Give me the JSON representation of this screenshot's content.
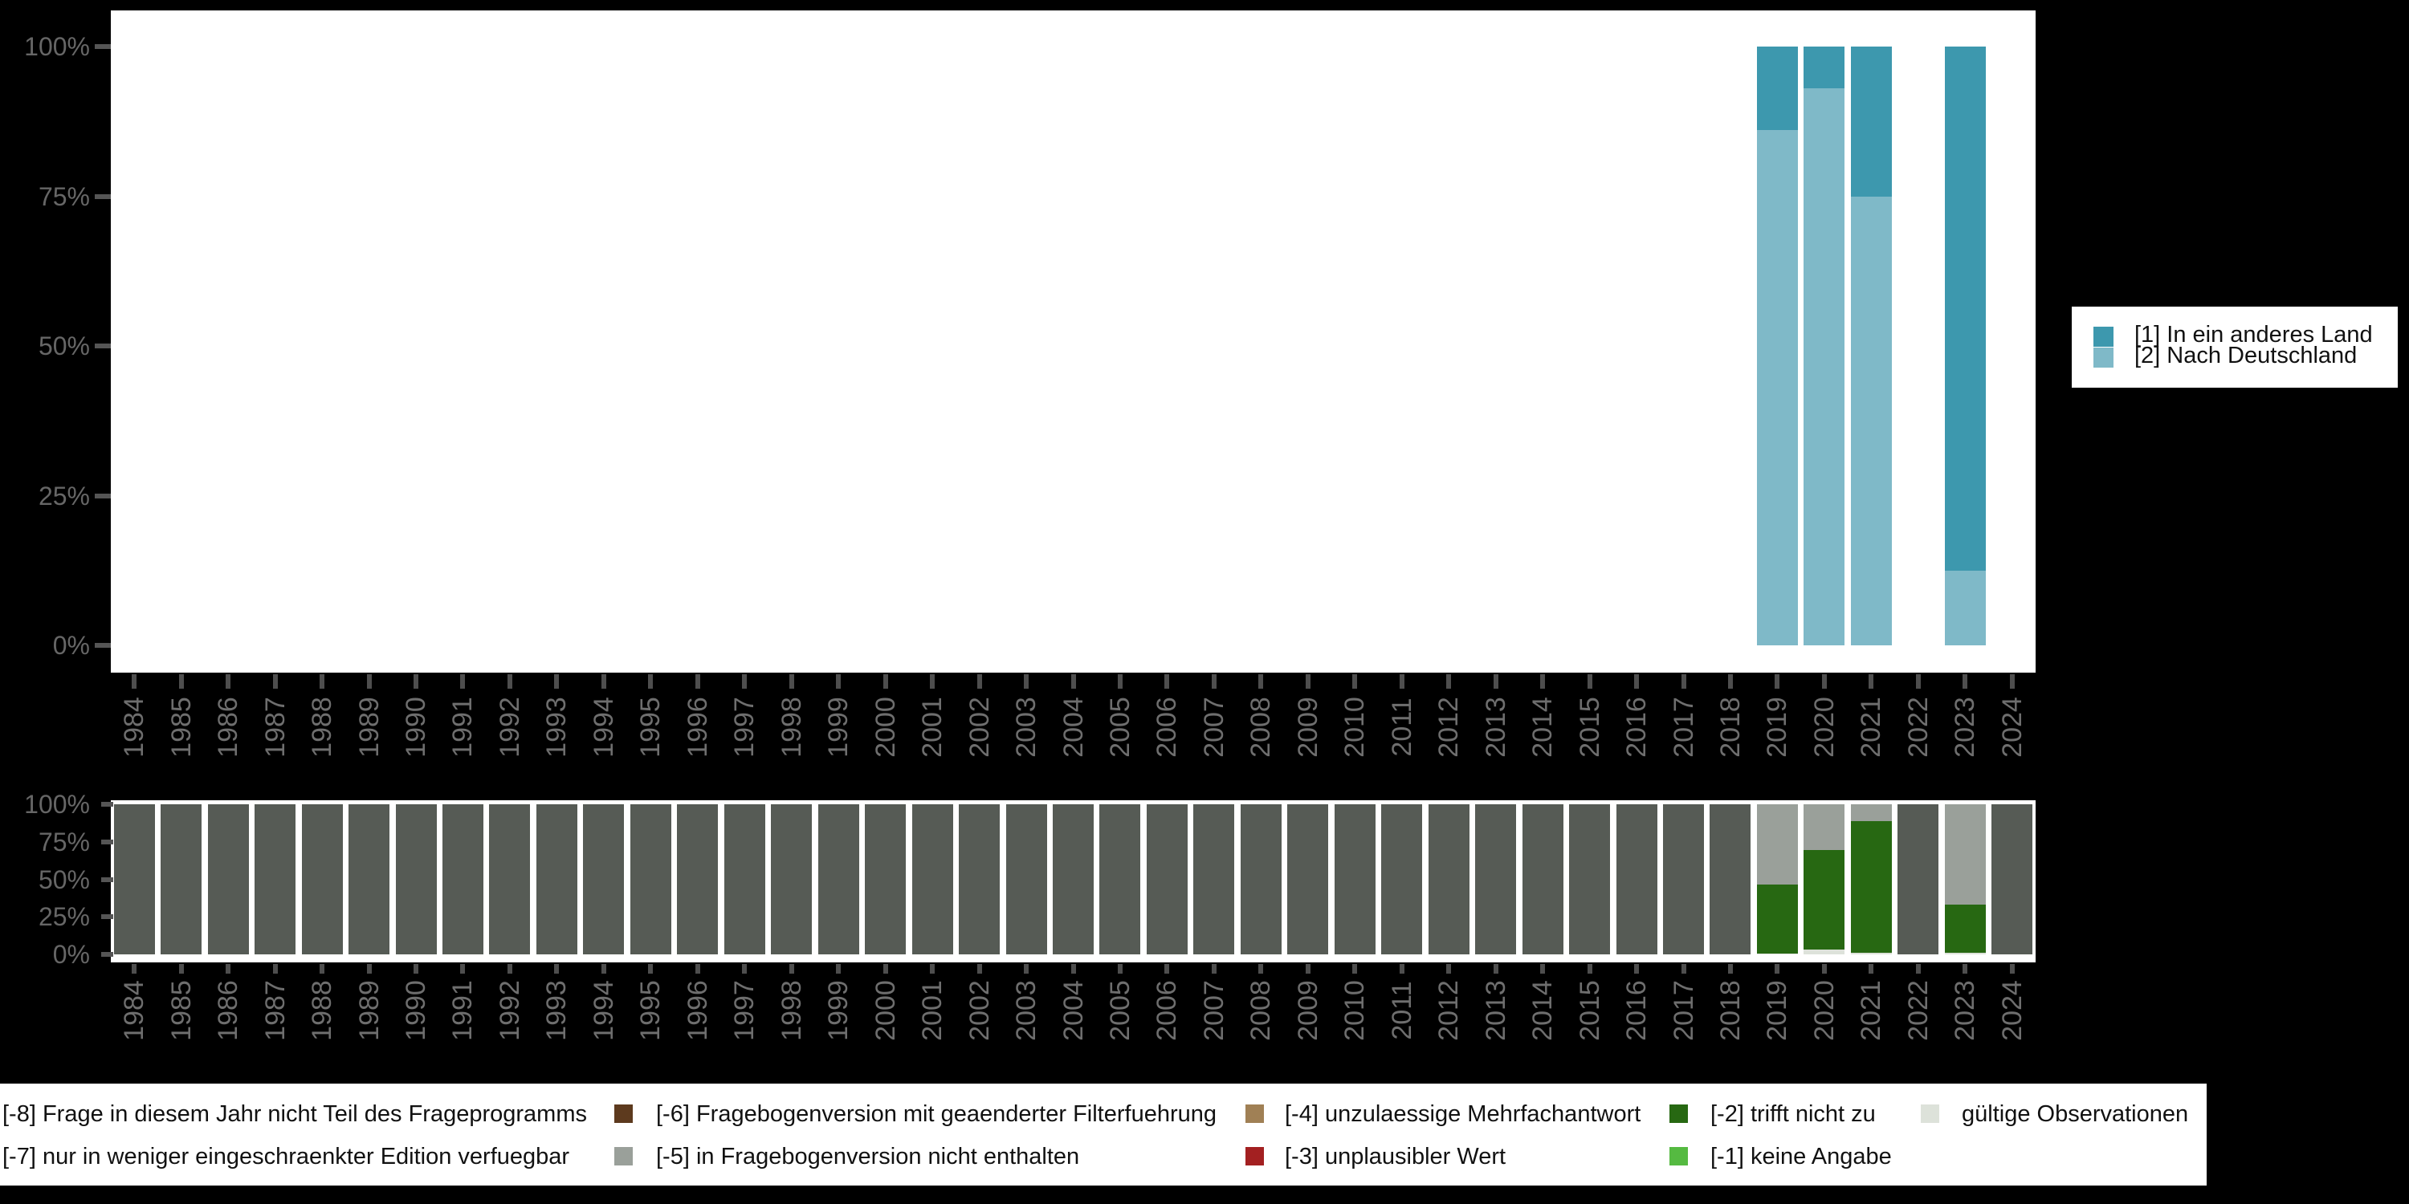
{
  "figure": {
    "background": "#000000",
    "panel_background": "#ffffff"
  },
  "answers_legend": {
    "items": [
      {
        "label": "[1] In ein anderes Land",
        "color": "#3D98AE"
      },
      {
        "label": "[2] Nach Deutschland",
        "color": "#7FB9C8"
      }
    ]
  },
  "chart_data": [
    {
      "type": "bar",
      "stacked": true,
      "stack_order": "bottom_to_top",
      "title": "",
      "xlabel": "",
      "ylabel": "",
      "ylim": [
        0,
        100
      ],
      "y_ticks": [
        "100%",
        "75%",
        "50%",
        "25%",
        "0%"
      ],
      "x": [
        "1984",
        "1985",
        "1986",
        "1987",
        "1988",
        "1989",
        "1990",
        "1991",
        "1992",
        "1993",
        "1994",
        "1995",
        "1996",
        "1997",
        "1998",
        "1999",
        "2000",
        "2001",
        "2002",
        "2003",
        "2004",
        "2005",
        "2006",
        "2007",
        "2008",
        "2009",
        "2010",
        "2011",
        "2012",
        "2013",
        "2014",
        "2015",
        "2016",
        "2017",
        "2018",
        "2019",
        "2020",
        "2021",
        "2022",
        "2023",
        "2024"
      ],
      "series": [
        {
          "name": "[2] Nach Deutschland",
          "color": "#7FB9C8",
          "values": {
            "2019": 86,
            "2020": 93,
            "2021": 75,
            "2023": 12.5
          }
        },
        {
          "name": "[1] In ein anderes Land",
          "color": "#3D98AE",
          "values": {
            "2019": 14,
            "2020": 7,
            "2021": 25,
            "2023": 87.5
          }
        }
      ],
      "note": "no bars for all other years"
    },
    {
      "type": "bar",
      "stacked": true,
      "stack_order": "bottom_to_top",
      "title": "",
      "xlabel": "",
      "ylabel": "",
      "ylim": [
        0,
        100
      ],
      "y_ticks": [
        "100%",
        "75%",
        "50%",
        "25%",
        "0%"
      ],
      "x": [
        "1984",
        "1985",
        "1986",
        "1987",
        "1988",
        "1989",
        "1990",
        "1991",
        "1992",
        "1993",
        "1994",
        "1995",
        "1996",
        "1997",
        "1998",
        "1999",
        "2000",
        "2001",
        "2002",
        "2003",
        "2004",
        "2005",
        "2006",
        "2007",
        "2008",
        "2009",
        "2010",
        "2011",
        "2012",
        "2013",
        "2014",
        "2015",
        "2016",
        "2017",
        "2018",
        "2019",
        "2020",
        "2021",
        "2022",
        "2023",
        "2024"
      ],
      "series": [
        {
          "name": "gültige Observationen",
          "color": "#DDE2DA",
          "values": {
            "2019": 0.5,
            "2020": 3.2,
            "2021": 1,
            "2023": 1
          }
        },
        {
          "name": "[-2] trifft nicht zu",
          "color": "#276812",
          "values": {
            "2019": 46,
            "2020": 66.3,
            "2021": 88,
            "2023": 32
          }
        },
        {
          "name": "[-5] in Fragebogenversion nicht enthalten",
          "color": "#9AA09A",
          "values": {
            "2019": 53.5,
            "2020": 30.5,
            "2021": 11,
            "2023": 67
          }
        },
        {
          "name": "[-8] Frage in diesem Jahr nicht Teil des Frageprogramms",
          "color": "#565B55",
          "values": {},
          "fill_remaining": true
        }
      ]
    }
  ],
  "missing_legend": {
    "rows": [
      [
        {
          "label": "[-8] Frage in diesem Jahr nicht Teil des Frageprogramms",
          "color": "#565B55",
          "key_visible": false
        },
        {
          "label": "[-6] Fragebogenversion mit geaenderter Filterfuehrung",
          "color": "#5D3A1E",
          "key_visible": true
        },
        {
          "label": "[-4] unzulaessige Mehrfachantwort",
          "color": "#A08055",
          "key_visible": true
        },
        {
          "label": "[-2] trifft nicht zu",
          "color": "#276812",
          "key_visible": true
        },
        {
          "label": "gültige Observationen",
          "color": "#DDE2DA",
          "key_visible": true
        }
      ],
      [
        {
          "label": "[-7] nur in weniger eingeschraenkter Edition verfuegbar",
          "key_visible": false
        },
        {
          "label": "[-5] in Fragebogenversion nicht enthalten",
          "color": "#9AA09A",
          "key_visible": true
        },
        {
          "label": "[-3] unplausibler Wert",
          "color": "#A32021",
          "key_visible": true
        },
        {
          "label": "[-1] keine Angabe",
          "color": "#55BA41",
          "key_visible": true
        }
      ]
    ]
  }
}
